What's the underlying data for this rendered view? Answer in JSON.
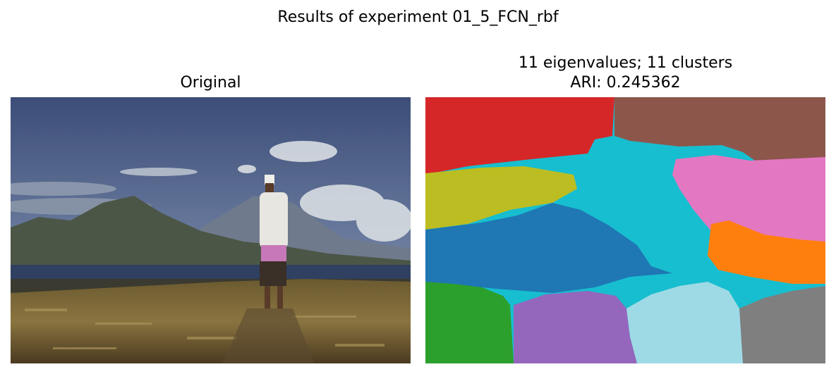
{
  "figure": {
    "suptitle": "Results of experiment 01_5_FCN_rbf"
  },
  "left_panel": {
    "title": "Original",
    "description_icon": "photo-landscape-man-on-hill"
  },
  "right_panel": {
    "title_line1": "11 eigenvalues; 11 clusters",
    "title_line2": "ARI: 0.245362",
    "segment_colors": {
      "red": "#d62728",
      "brown": "#8c564b",
      "cyan": "#17becf",
      "pink": "#e377c2",
      "olive": "#bcbd22",
      "blue": "#1f77b4",
      "orange": "#ff7f0e",
      "green": "#2ca02c",
      "purple": "#9467bd",
      "lightblue": "#9edae5",
      "gray": "#7f7f7f"
    }
  }
}
